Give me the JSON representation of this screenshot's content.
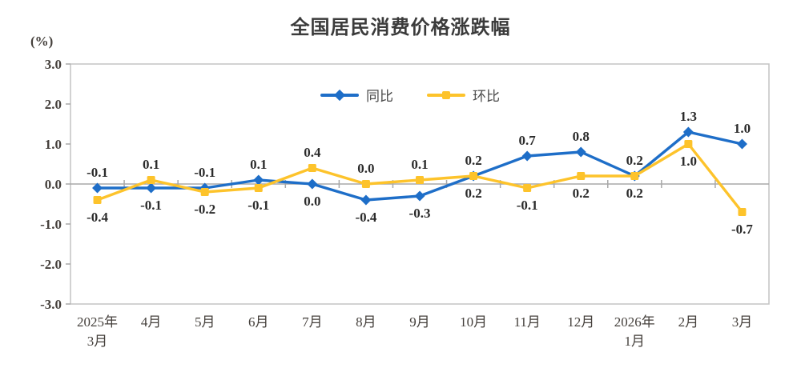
{
  "chart_data": {
    "type": "line",
    "title": "全国居民消费价格涨跌幅",
    "unit_label": "(%)",
    "xlabel": "",
    "ylabel": "(%)",
    "ylim": [
      -3.0,
      3.0
    ],
    "ytick_step": 1.0,
    "ytick_labels": [
      "3.0",
      "2.0",
      "1.0",
      "0.0",
      "-1.0",
      "-2.0",
      "-3.0"
    ],
    "grid": false,
    "legend_position": "top-center",
    "categories": [
      "2025年\n3月",
      "4月",
      "5月",
      "6月",
      "7月",
      "8月",
      "9月",
      "10月",
      "11月",
      "12月",
      "2026年\n1月",
      "2月",
      "3月"
    ],
    "series": [
      {
        "name": "同比",
        "marker": "diamond",
        "color": "#1e6ec8",
        "values": [
          -0.1,
          -0.1,
          -0.1,
          0.1,
          0.0,
          -0.4,
          -0.3,
          0.2,
          0.7,
          0.8,
          0.2,
          1.3,
          1.0
        ]
      },
      {
        "name": "环比",
        "marker": "square",
        "color": "#fdc32b",
        "values": [
          -0.4,
          0.1,
          -0.2,
          -0.1,
          0.4,
          0.0,
          0.1,
          0.2,
          -0.1,
          0.2,
          0.2,
          1.0,
          -0.7
        ]
      }
    ]
  },
  "style": {
    "background": "#ffffff",
    "title_color": "#3b3b3b",
    "axis_border_color": "#c3c3c3",
    "zero_line_color": "#a8a8a8",
    "tick_color": "#a8a8a8",
    "axis_label_color": "#45403c",
    "data_label_color": "#2b2b2b",
    "legend_text_color": "#4a4a4a"
  }
}
